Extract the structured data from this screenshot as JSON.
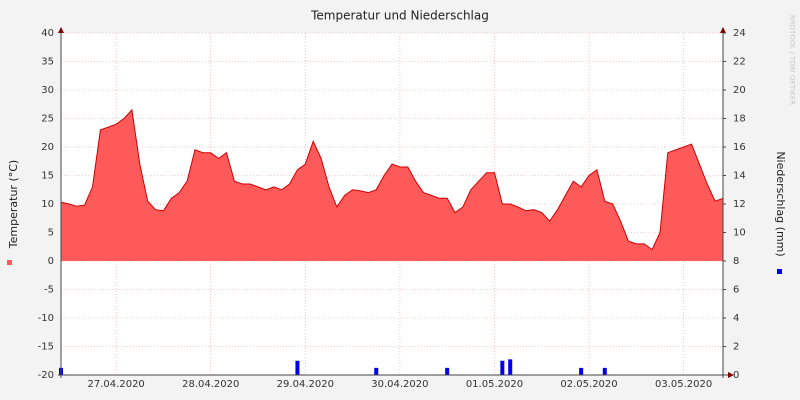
{
  "chart_data": {
    "type": "area",
    "title": "Temperatur und Niederschlag",
    "y_label": "Temperatur (°C)",
    "y2_label": "Niederschlag (mm)",
    "watermark": "RRDTOOL / TOBI OETIKER",
    "categories": [
      null,
      null,
      null,
      null,
      null,
      null,
      null,
      "27.04.2020",
      null,
      null,
      null,
      null,
      null,
      null,
      null,
      null,
      null,
      null,
      null,
      "28.04.2020",
      null,
      null,
      null,
      null,
      null,
      null,
      null,
      null,
      null,
      null,
      null,
      "29.04.2020",
      null,
      null,
      null,
      null,
      null,
      null,
      null,
      null,
      null,
      null,
      null,
      "30.04.2020",
      null,
      null,
      null,
      null,
      null,
      null,
      null,
      null,
      null,
      null,
      null,
      "01.05.2020",
      null,
      null,
      null,
      null,
      null,
      null,
      null,
      null,
      null,
      null,
      null,
      "02.05.2020",
      null,
      null,
      null,
      null,
      null,
      null,
      null,
      null,
      null,
      null,
      null,
      "03.05.2020",
      null,
      null,
      null,
      null,
      null
    ],
    "series": [
      {
        "color": "#ff5a5a",
        "line_color": "#cc0000",
        "values": [
          10.3,
          10,
          9.6,
          9.8,
          13,
          23,
          23.5,
          24,
          25,
          26.5,
          17,
          10.5,
          9,
          8.8,
          11,
          12,
          14,
          19.5,
          19,
          19,
          18,
          19,
          14,
          13.5,
          13.5,
          13,
          12.5,
          13,
          12.5,
          13.5,
          16,
          17,
          21,
          18,
          13,
          9.5,
          11.5,
          12.5,
          12.3,
          12,
          12.5,
          15,
          17,
          16.5,
          16.5,
          14,
          12,
          11.5,
          11,
          11,
          8.5,
          9.5,
          12.5,
          14,
          15.5,
          15.5,
          10,
          10,
          9.5,
          8.8,
          9,
          8.5,
          7,
          9,
          11.5,
          14,
          13,
          15,
          16,
          10.5,
          10,
          7,
          3.5,
          3,
          3,
          2,
          5,
          19,
          19.5,
          20,
          20.5,
          17,
          13.5,
          10.5,
          11
        ]
      },
      {
        "type": "bar",
        "axis": "y2",
        "color": "#0000ee",
        "values": [
          0.5,
          0,
          0,
          0,
          0,
          0,
          0,
          0,
          0,
          0,
          0,
          0,
          0,
          0,
          0,
          0,
          0,
          0,
          0,
          0,
          0,
          0,
          0,
          0,
          0,
          0,
          0,
          0,
          0,
          0,
          1,
          0,
          0,
          0,
          0,
          0,
          0,
          0,
          0,
          0,
          0.5,
          0,
          0,
          0,
          0,
          0,
          0,
          0,
          0,
          0.5,
          0,
          0,
          0,
          0,
          0,
          0,
          1,
          1.1,
          0,
          0,
          0,
          0,
          0,
          0,
          0,
          0,
          0.5,
          0,
          0,
          0.5,
          0,
          0,
          0,
          0,
          0,
          0,
          0,
          0,
          0,
          0,
          0,
          0,
          0,
          0,
          0
        ]
      }
    ],
    "ylim": [
      -20,
      40
    ],
    "yticks": [
      -20,
      -15,
      -10,
      -5,
      0,
      5,
      10,
      15,
      20,
      25,
      30,
      35,
      40
    ],
    "y2lim": [
      0,
      24
    ],
    "y2ticks": [
      0,
      2,
      4,
      6,
      8,
      10,
      12,
      14,
      16,
      18,
      20,
      22,
      24
    ],
    "grid": true
  }
}
